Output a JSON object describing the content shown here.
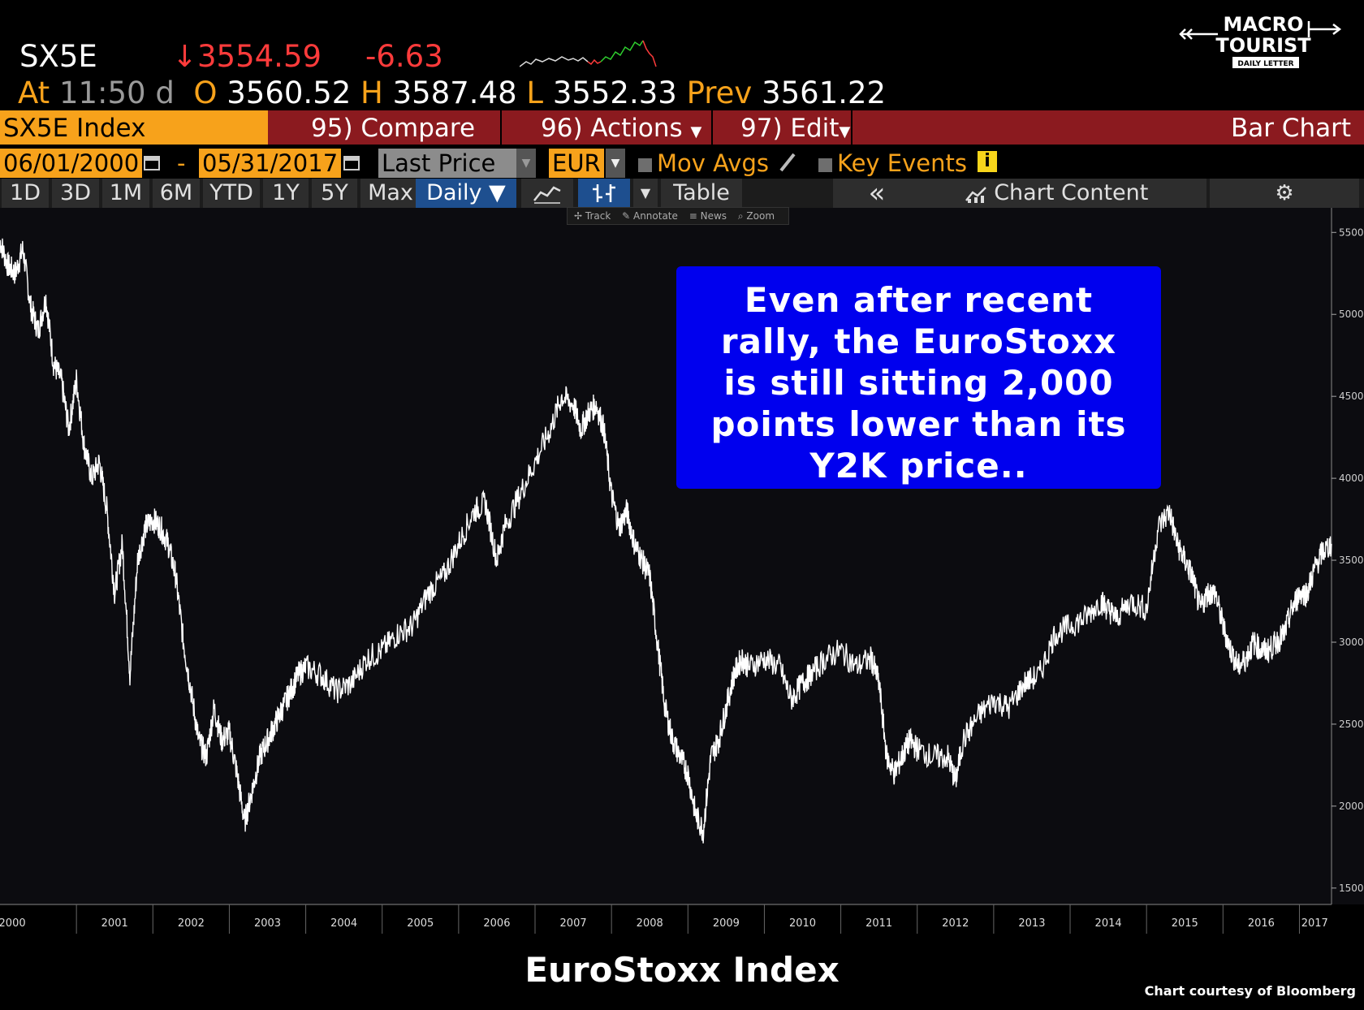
{
  "header": {
    "ticker": "SX5E",
    "last_arrow": "↓",
    "last_price": "3554.59",
    "change": "-6.63",
    "at_label": "At",
    "time": "11:50",
    "time_suffix": "d",
    "open_label": "O",
    "open": "3560.52",
    "high_label": "H",
    "high": "3587.48",
    "low_label": "L",
    "low": "3552.33",
    "prev_label": "Prev",
    "prev": "3561.22"
  },
  "logo": {
    "line1": "MACRO",
    "line2": "TOURIST",
    "tag": "DAILY LETTER"
  },
  "menubar": {
    "security": "SX5E Index",
    "compare": "95) Compare",
    "actions": "96) Actions",
    "edit": "97) Edit",
    "chart_type": "Bar Chart"
  },
  "daterow": {
    "start_date": "06/01/2000",
    "dash": "-",
    "end_date": "05/31/2017",
    "field": "Last Price",
    "currency": "EUR",
    "mov_avgs": "Mov Avgs",
    "key_events": "Key Events"
  },
  "periods": [
    "1D",
    "3D",
    "1M",
    "6M",
    "YTD",
    "1Y",
    "5Y",
    "Max"
  ],
  "frequency": "Daily ▼",
  "table_label": "Table",
  "collapse_label": "«",
  "chart_content": "Chart Content",
  "toolbar": {
    "track": "Track",
    "annotate": "Annotate",
    "news": "News",
    "zoom": "Zoom"
  },
  "callout": [
    "Even after recent",
    "rally, the EuroStoxx",
    "is still sitting 2,000",
    "points lower than its",
    "Y2K price.."
  ],
  "caption": "EuroStoxx Index",
  "credit": "Chart courtesy of Bloomberg",
  "colors": {
    "accent_orange": "#f7a21b",
    "menu_red": "#8b1a1f",
    "callout_blue": "#0000ee",
    "down_red": "#ff3b3b"
  },
  "chart_data": {
    "type": "line",
    "ylim": [
      1400,
      5650
    ],
    "xlim": [
      2000.0,
      2017.42
    ],
    "y_ticks": [
      1500,
      2000,
      2500,
      3000,
      3500,
      4000,
      4500,
      5000,
      5500
    ],
    "x_tick_labels": [
      "2000",
      "2001",
      "2002",
      "2003",
      "2004",
      "2005",
      "2006",
      "2007",
      "2008",
      "2009",
      "2010",
      "2011",
      "2012",
      "2013",
      "2014",
      "2015",
      "2016",
      "2017"
    ],
    "series": [
      {
        "x": [
          2000.0,
          2000.1,
          2000.2,
          2000.3,
          2000.4,
          2000.5,
          2000.6,
          2000.7,
          2000.8,
          2000.9,
          2001.0,
          2001.1,
          2001.2,
          2001.3,
          2001.4,
          2001.5,
          2001.6,
          2001.7,
          2001.8,
          2001.9,
          2002.0,
          2002.1,
          2002.2,
          2002.3,
          2002.4,
          2002.5,
          2002.6,
          2002.7,
          2002.8,
          2002.9,
          2003.0,
          2003.1,
          2003.2,
          2003.3,
          2003.4,
          2003.5,
          2003.6,
          2003.7,
          2003.8,
          2003.9,
          2004.0,
          2004.2,
          2004.4,
          2004.6,
          2004.8,
          2005.0,
          2005.2,
          2005.4,
          2005.6,
          2005.8,
          2006.0,
          2006.2,
          2006.35,
          2006.5,
          2006.6,
          2006.8,
          2007.0,
          2007.2,
          2007.35,
          2007.5,
          2007.6,
          2007.7,
          2007.8,
          2007.9,
          2008.0,
          2008.1,
          2008.2,
          2008.3,
          2008.4,
          2008.5,
          2008.6,
          2008.7,
          2008.8,
          2008.9,
          2009.0,
          2009.1,
          2009.2,
          2009.3,
          2009.4,
          2009.5,
          2009.6,
          2009.7,
          2009.8,
          2010.0,
          2010.2,
          2010.35,
          2010.5,
          2010.6,
          2010.8,
          2011.0,
          2011.2,
          2011.4,
          2011.5,
          2011.6,
          2011.7,
          2011.8,
          2011.9,
          2012.0,
          2012.2,
          2012.4,
          2012.5,
          2012.6,
          2012.8,
          2013.0,
          2013.2,
          2013.4,
          2013.6,
          2013.8,
          2014.0,
          2014.2,
          2014.4,
          2014.5,
          2014.6,
          2014.8,
          2015.0,
          2015.15,
          2015.3,
          2015.4,
          2015.5,
          2015.6,
          2015.7,
          2015.8,
          2015.9,
          2016.0,
          2016.1,
          2016.2,
          2016.3,
          2016.4,
          2016.5,
          2016.6,
          2016.7,
          2016.8,
          2016.9,
          2017.0,
          2017.1,
          2017.2,
          2017.3,
          2017.42
        ],
        "y": [
          5450,
          5300,
          5250,
          5400,
          5050,
          4900,
          5100,
          4700,
          4600,
          4300,
          4600,
          4200,
          4000,
          4100,
          3800,
          3300,
          3600,
          2800,
          3500,
          3700,
          3750,
          3700,
          3600,
          3400,
          3000,
          2700,
          2400,
          2300,
          2600,
          2400,
          2450,
          2200,
          1900,
          2100,
          2300,
          2400,
          2500,
          2600,
          2700,
          2800,
          2850,
          2800,
          2700,
          2750,
          2900,
          2950,
          3050,
          3100,
          3300,
          3400,
          3600,
          3800,
          3850,
          3500,
          3700,
          3900,
          4100,
          4300,
          4500,
          4450,
          4300,
          4400,
          4450,
          4300,
          3900,
          3700,
          3800,
          3600,
          3500,
          3400,
          3000,
          2600,
          2400,
          2300,
          2200,
          1950,
          1850,
          2300,
          2400,
          2600,
          2800,
          2900,
          2850,
          2900,
          2850,
          2650,
          2750,
          2800,
          2900,
          2950,
          2850,
          2900,
          2750,
          2300,
          2200,
          2300,
          2400,
          2350,
          2300,
          2300,
          2150,
          2400,
          2550,
          2650,
          2600,
          2750,
          2800,
          3050,
          3100,
          3150,
          3250,
          3200,
          3150,
          3250,
          3200,
          3700,
          3800,
          3600,
          3500,
          3400,
          3200,
          3300,
          3300,
          3100,
          2950,
          2850,
          2900,
          3000,
          2950,
          2950,
          3000,
          3050,
          3200,
          3300,
          3300,
          3450,
          3550,
          3600
        ]
      }
    ]
  }
}
